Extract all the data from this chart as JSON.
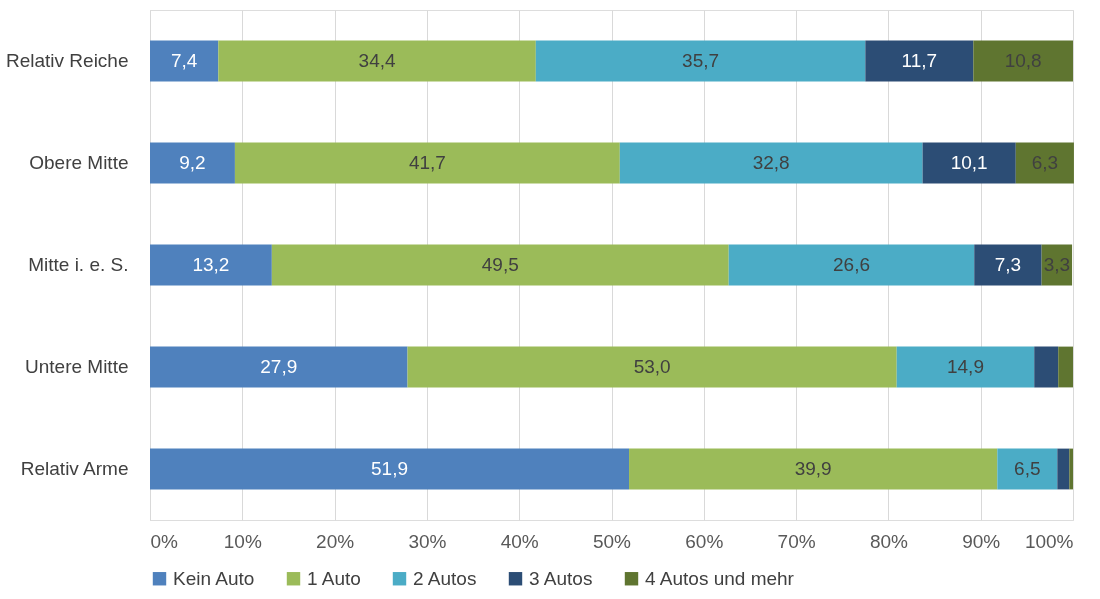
{
  "chart_data": {
    "type": "bar",
    "orientation": "horizontal",
    "stacked": true,
    "categories": [
      "Relativ Reiche",
      "Obere Mitte",
      "Mitte i. e. S.",
      "Untere Mitte",
      "Relativ Arme"
    ],
    "series": [
      {
        "name": "Kein Auto",
        "color": "#4f81bd",
        "values": [
          7.4,
          9.2,
          13.2,
          27.9,
          51.9
        ],
        "value_labels": [
          "7,4",
          "9,2",
          "13,2",
          "27,9",
          "51,9"
        ]
      },
      {
        "name": "1 Auto",
        "color": "#9bbb59",
        "values": [
          34.4,
          41.7,
          49.5,
          53.0,
          39.9
        ],
        "value_labels": [
          "34,4",
          "41,7",
          "49,5",
          "53,0",
          "39,9"
        ]
      },
      {
        "name": "2 Autos",
        "color": "#4bacc6",
        "values": [
          35.7,
          32.8,
          26.6,
          14.9,
          6.5
        ],
        "value_labels": [
          "35,7",
          "32,8",
          "26,6",
          "14,9",
          "6,5"
        ]
      },
      {
        "name": "3 Autos",
        "color": "#2c4d75",
        "values": [
          11.7,
          10.1,
          7.3,
          2.6,
          1.3
        ],
        "value_labels": [
          "11,7",
          "10,1",
          "7,3",
          null,
          null
        ]
      },
      {
        "name": "4 Autos und mehr",
        "color": "#5f7530",
        "values": [
          10.8,
          6.3,
          3.3,
          1.6,
          0.4
        ],
        "value_labels": [
          "10,8",
          "6,3",
          "3,3",
          null,
          null
        ]
      }
    ],
    "xlim": [
      0,
      100
    ],
    "xticks": [
      {
        "value": 0,
        "label": "0%"
      },
      {
        "value": 10,
        "label": "10%"
      },
      {
        "value": 20,
        "label": "20%"
      },
      {
        "value": 30,
        "label": "30%"
      },
      {
        "value": 40,
        "label": "40%"
      },
      {
        "value": 50,
        "label": "50%"
      },
      {
        "value": 60,
        "label": "60%"
      },
      {
        "value": 70,
        "label": "70%"
      },
      {
        "value": 80,
        "label": "80%"
      },
      {
        "value": 90,
        "label": "90%"
      },
      {
        "value": 100,
        "label": "100%"
      }
    ],
    "grid": "x",
    "legend": "bottom"
  }
}
